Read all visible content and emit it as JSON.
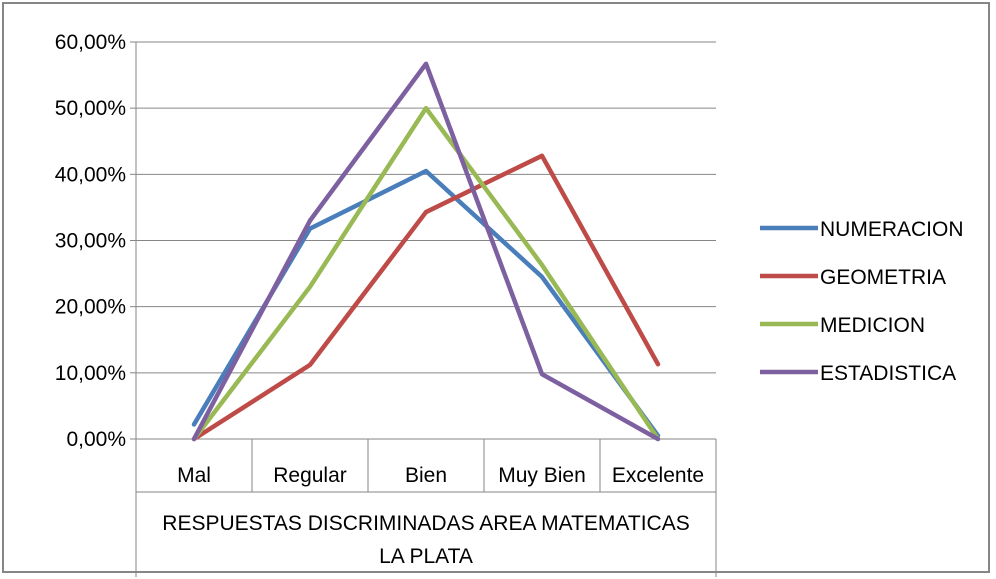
{
  "chart_data": {
    "type": "line",
    "categories": [
      "Mal",
      "Regular",
      "Bien",
      "Muy Bien",
      "Excelente"
    ],
    "xlabel_lines": [
      "RESPUESTAS DISCRIMINADAS AREA  MATEMATICAS",
      "LA PLATA"
    ],
    "ylim": [
      0,
      0.6
    ],
    "yticks": [
      "0,00%",
      "10,00%",
      "20,00%",
      "30,00%",
      "40,00%",
      "50,00%",
      "60,00%"
    ],
    "grid": true,
    "legend_position": "right",
    "series": [
      {
        "name": "NUMERACION",
        "color": "#4a7ebb",
        "values": [
          0.022,
          0.318,
          0.405,
          0.245,
          0.005
        ]
      },
      {
        "name": "GEOMETRIA",
        "color": "#be4b48",
        "values": [
          0.0,
          0.112,
          0.343,
          0.428,
          0.113
        ]
      },
      {
        "name": "MEDICION",
        "color": "#98b954",
        "values": [
          0.0,
          0.23,
          0.5,
          0.263,
          0.0
        ]
      },
      {
        "name": "ESTADISTICA",
        "color": "#7d60a0",
        "values": [
          0.0,
          0.33,
          0.567,
          0.098,
          0.0
        ]
      }
    ]
  }
}
